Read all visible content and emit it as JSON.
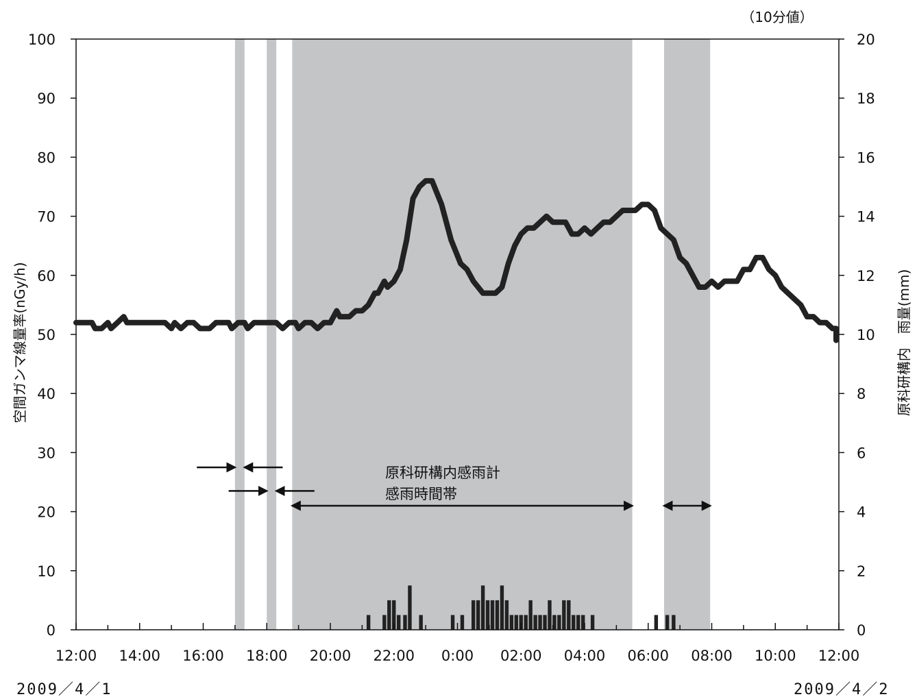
{
  "chart_data": {
    "type": "line",
    "unit_note": "（10分値）",
    "ylabel_left": "空間ガンマ線量率(nGy/h)",
    "ylabel_right": "原科研構内　雨量(mm)",
    "ylim_left": [
      0,
      100
    ],
    "ylim_right": [
      0,
      20
    ],
    "y_ticks_left": [
      "0",
      "10",
      "20",
      "30",
      "40",
      "50",
      "60",
      "70",
      "80",
      "90",
      "100"
    ],
    "y_ticks_right": [
      "0",
      "2",
      "4",
      "6",
      "8",
      "10",
      "12",
      "14",
      "16",
      "18",
      "20"
    ],
    "x_tick_labels": [
      "12:00",
      "14:00",
      "16:00",
      "18:00",
      "20:00",
      "22:00",
      "0:00",
      "02:00",
      "04:00",
      "06:00",
      "08:00",
      "10:00",
      "12:00"
    ],
    "x_range_hours": [
      0,
      24
    ],
    "date_start": "2009／4／1",
    "date_end": "2009／4／2",
    "annotation": [
      "原科研構内感雨計",
      "感雨時間帯"
    ],
    "rain_sensing_periods_hours": [
      [
        5.0,
        5.3
      ],
      [
        6.0,
        6.3
      ],
      [
        6.8,
        17.5
      ],
      [
        18.5,
        19.95
      ]
    ],
    "series": [
      {
        "name": "空間ガンマ線量率",
        "axis": "left",
        "points": [
          [
            0.0,
            52
          ],
          [
            0.5,
            52
          ],
          [
            0.6,
            51
          ],
          [
            0.8,
            51
          ],
          [
            1.0,
            52
          ],
          [
            1.1,
            51
          ],
          [
            1.3,
            52
          ],
          [
            1.5,
            53
          ],
          [
            1.6,
            52
          ],
          [
            2.0,
            52
          ],
          [
            2.5,
            52
          ],
          [
            2.8,
            52
          ],
          [
            3.0,
            51
          ],
          [
            3.1,
            52
          ],
          [
            3.3,
            51
          ],
          [
            3.5,
            52
          ],
          [
            3.7,
            52
          ],
          [
            3.9,
            51
          ],
          [
            4.2,
            51
          ],
          [
            4.4,
            52
          ],
          [
            4.8,
            52
          ],
          [
            4.9,
            51
          ],
          [
            5.1,
            52
          ],
          [
            5.3,
            52
          ],
          [
            5.4,
            51
          ],
          [
            5.6,
            52
          ],
          [
            6.0,
            52
          ],
          [
            6.3,
            52
          ],
          [
            6.5,
            51
          ],
          [
            6.7,
            52
          ],
          [
            6.9,
            52
          ],
          [
            7.0,
            51
          ],
          [
            7.2,
            52
          ],
          [
            7.4,
            52
          ],
          [
            7.6,
            51
          ],
          [
            7.8,
            52
          ],
          [
            8.0,
            52
          ],
          [
            8.2,
            54
          ],
          [
            8.3,
            53
          ],
          [
            8.6,
            53
          ],
          [
            8.8,
            54
          ],
          [
            9.0,
            54
          ],
          [
            9.2,
            55
          ],
          [
            9.4,
            57
          ],
          [
            9.5,
            57
          ],
          [
            9.7,
            59
          ],
          [
            9.8,
            58
          ],
          [
            10.0,
            59
          ],
          [
            10.2,
            61
          ],
          [
            10.4,
            66
          ],
          [
            10.6,
            73
          ],
          [
            10.8,
            75
          ],
          [
            11.0,
            76
          ],
          [
            11.2,
            76
          ],
          [
            11.5,
            72
          ],
          [
            11.8,
            66
          ],
          [
            12.1,
            62
          ],
          [
            12.3,
            61
          ],
          [
            12.5,
            59
          ],
          [
            12.8,
            57
          ],
          [
            13.0,
            57
          ],
          [
            13.2,
            57
          ],
          [
            13.4,
            58
          ],
          [
            13.6,
            62
          ],
          [
            13.8,
            65
          ],
          [
            14.0,
            67
          ],
          [
            14.2,
            68
          ],
          [
            14.4,
            68
          ],
          [
            14.6,
            69
          ],
          [
            14.8,
            70
          ],
          [
            15.0,
            69
          ],
          [
            15.2,
            69
          ],
          [
            15.4,
            69
          ],
          [
            15.5,
            68
          ],
          [
            15.6,
            67
          ],
          [
            15.8,
            67
          ],
          [
            16.0,
            68
          ],
          [
            16.2,
            67
          ],
          [
            16.4,
            68
          ],
          [
            16.6,
            69
          ],
          [
            16.8,
            69
          ],
          [
            17.0,
            70
          ],
          [
            17.2,
            71
          ],
          [
            17.4,
            71
          ],
          [
            17.6,
            71
          ],
          [
            17.8,
            72
          ],
          [
            18.0,
            72
          ],
          [
            18.2,
            71
          ],
          [
            18.4,
            68
          ],
          [
            18.6,
            67
          ],
          [
            18.8,
            66
          ],
          [
            19.0,
            63
          ],
          [
            19.2,
            62
          ],
          [
            19.4,
            60
          ],
          [
            19.6,
            58
          ],
          [
            19.8,
            58
          ],
          [
            20.0,
            59
          ],
          [
            20.2,
            58
          ],
          [
            20.4,
            59
          ],
          [
            20.6,
            59
          ],
          [
            20.8,
            59
          ],
          [
            21.0,
            61
          ],
          [
            21.2,
            61
          ],
          [
            21.4,
            63
          ],
          [
            21.6,
            63
          ],
          [
            21.8,
            61
          ],
          [
            22.0,
            60
          ],
          [
            22.2,
            58
          ],
          [
            22.4,
            57
          ],
          [
            22.6,
            56
          ],
          [
            22.8,
            55
          ],
          [
            23.0,
            53
          ],
          [
            23.2,
            53
          ],
          [
            23.4,
            52
          ],
          [
            23.6,
            52
          ],
          [
            23.8,
            51
          ],
          [
            24.0,
            51
          ],
          [
            24.2,
            51
          ],
          [
            24.4,
            50
          ],
          [
            24.6,
            50
          ],
          [
            24.8,
            50
          ],
          [
            25.0,
            49
          ]
        ]
      },
      {
        "name": "雨量",
        "axis": "right",
        "type": "bar",
        "bars": [
          [
            9.2,
            0.5
          ],
          [
            9.7,
            0.5
          ],
          [
            9.85,
            1.0
          ],
          [
            10.0,
            1.0
          ],
          [
            10.15,
            0.5
          ],
          [
            10.35,
            0.5
          ],
          [
            10.5,
            1.5
          ],
          [
            10.85,
            0.5
          ],
          [
            11.85,
            0.5
          ],
          [
            12.15,
            0.5
          ],
          [
            12.5,
            1.0
          ],
          [
            12.65,
            1.0
          ],
          [
            12.8,
            1.5
          ],
          [
            12.95,
            1.0
          ],
          [
            13.1,
            1.0
          ],
          [
            13.25,
            1.0
          ],
          [
            13.4,
            1.5
          ],
          [
            13.55,
            1.0
          ],
          [
            13.7,
            0.5
          ],
          [
            13.85,
            0.5
          ],
          [
            14.0,
            0.5
          ],
          [
            14.15,
            0.5
          ],
          [
            14.3,
            1.0
          ],
          [
            14.45,
            0.5
          ],
          [
            14.6,
            0.5
          ],
          [
            14.75,
            0.5
          ],
          [
            14.9,
            1.0
          ],
          [
            15.05,
            0.5
          ],
          [
            15.2,
            0.5
          ],
          [
            15.35,
            1.0
          ],
          [
            15.5,
            1.0
          ],
          [
            15.65,
            0.5
          ],
          [
            15.8,
            0.5
          ],
          [
            15.95,
            0.5
          ],
          [
            16.25,
            0.5
          ],
          [
            18.25,
            0.5
          ],
          [
            18.6,
            0.5
          ],
          [
            18.8,
            0.5
          ]
        ]
      }
    ],
    "grid": false,
    "legend": "none"
  }
}
